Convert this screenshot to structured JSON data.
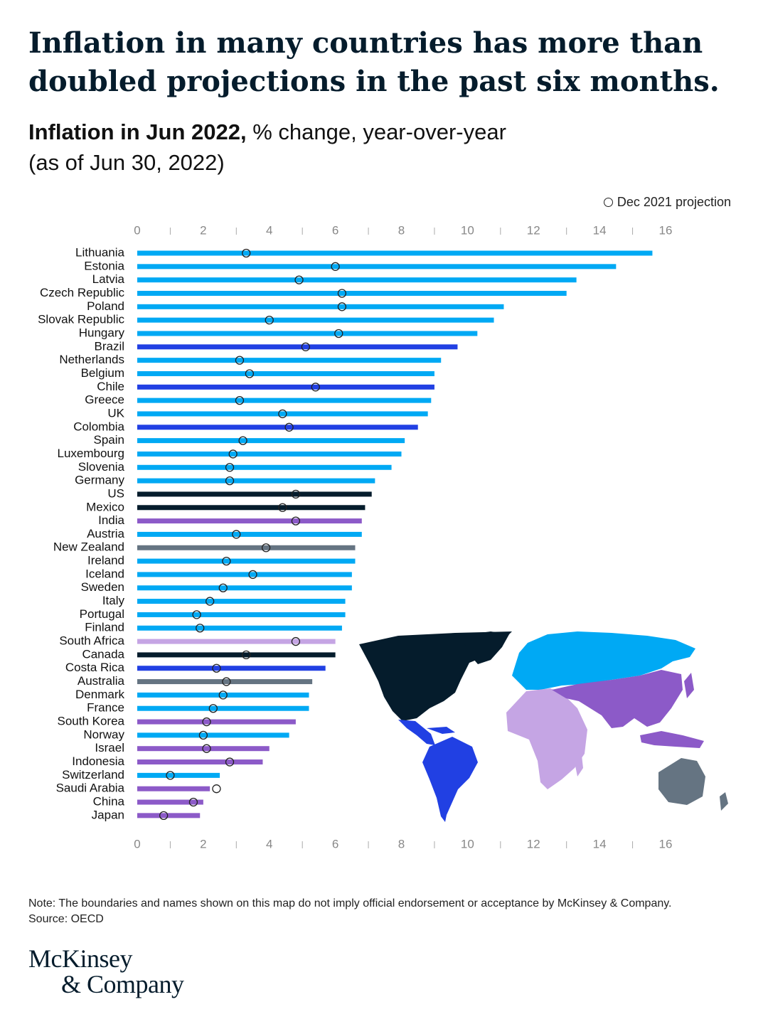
{
  "headline": "Inflation in many countries has more than doubled projections in the past six months.",
  "subtitle": {
    "bold": "Inflation in Jun 2022,",
    "rest": " % change, year-over-year",
    "line2": "(as of Jun 30, 2022)"
  },
  "legend": {
    "label": "Dec 2021 projection"
  },
  "note": "Note: The boundaries and names shown on this map do not imply official endorsement or acceptance by McKinsey & Company.",
  "source": "Source: OECD",
  "logo": {
    "line1": "McKinsey",
    "line2": "& Company"
  },
  "colors": {
    "Europe": "#00a9f4",
    "Latin America": "#2140e3",
    "North America": "#051c2c",
    "Asia / Middle East": "#8c5ac8",
    "Oceania": "#657482",
    "Africa": "#c5a5e4",
    "axis": "#888888"
  },
  "chart_data": {
    "type": "bar",
    "orientation": "horizontal",
    "xlim": [
      0,
      16
    ],
    "xticks": [
      0,
      2,
      4,
      6,
      8,
      10,
      12,
      14,
      16
    ],
    "grid": false,
    "categories": [
      "Lithuania",
      "Estonia",
      "Latvia",
      "Czech Republic",
      "Poland",
      "Slovak Republic",
      "Hungary",
      "Brazil",
      "Netherlands",
      "Belgium",
      "Chile",
      "Greece",
      "UK",
      "Colombia",
      "Spain",
      "Luxembourg",
      "Slovenia",
      "Germany",
      "US",
      "Mexico",
      "India",
      "Austria",
      "New Zealand",
      "Ireland",
      "Iceland",
      "Sweden",
      "Italy",
      "Portugal",
      "Finland",
      "South Africa",
      "Canada",
      "Costa Rica",
      "Australia",
      "Denmark",
      "France",
      "South Korea",
      "Norway",
      "Israel",
      "Indonesia",
      "Switzerland",
      "Saudi Arabia",
      "China",
      "Japan"
    ],
    "series": [
      {
        "values": [
          15.6,
          14.5,
          13.3,
          13.0,
          11.1,
          10.8,
          10.3,
          9.7,
          9.2,
          9.0,
          9.0,
          8.9,
          8.8,
          8.5,
          8.1,
          8.0,
          7.7,
          7.2,
          7.1,
          6.9,
          6.8,
          6.8,
          6.6,
          6.6,
          6.5,
          6.5,
          6.3,
          6.3,
          6.2,
          6.0,
          6.0,
          5.7,
          5.3,
          5.2,
          5.2,
          4.8,
          4.6,
          4.0,
          3.8,
          2.5,
          2.2,
          2.0,
          1.9
        ]
      },
      {
        "name": "Dec 2021 projection",
        "marker": "open-circle",
        "values": [
          3.3,
          6.0,
          4.9,
          6.2,
          6.2,
          4.0,
          6.1,
          5.1,
          3.1,
          3.4,
          5.4,
          3.1,
          4.4,
          4.6,
          3.2,
          2.9,
          2.8,
          2.8,
          4.8,
          4.4,
          4.8,
          3.0,
          3.9,
          2.7,
          3.5,
          2.6,
          2.2,
          1.8,
          1.9,
          4.8,
          3.3,
          2.4,
          2.7,
          2.6,
          2.3,
          2.1,
          2.0,
          2.1,
          2.8,
          1.0,
          2.4,
          1.7,
          0.8
        ]
      }
    ],
    "bar_regions": [
      "Europe",
      "Europe",
      "Europe",
      "Europe",
      "Europe",
      "Europe",
      "Europe",
      "Latin America",
      "Europe",
      "Europe",
      "Latin America",
      "Europe",
      "Europe",
      "Latin America",
      "Europe",
      "Europe",
      "Europe",
      "Europe",
      "North America",
      "North America",
      "Asia / Middle East",
      "Europe",
      "Oceania",
      "Europe",
      "Europe",
      "Europe",
      "Europe",
      "Europe",
      "Europe",
      "Africa",
      "North America",
      "Latin America",
      "Oceania",
      "Europe",
      "Europe",
      "Asia / Middle East",
      "Europe",
      "Asia / Middle East",
      "Asia / Middle East",
      "Europe",
      "Asia / Middle East",
      "Asia / Middle East",
      "Asia / Middle East"
    ]
  }
}
